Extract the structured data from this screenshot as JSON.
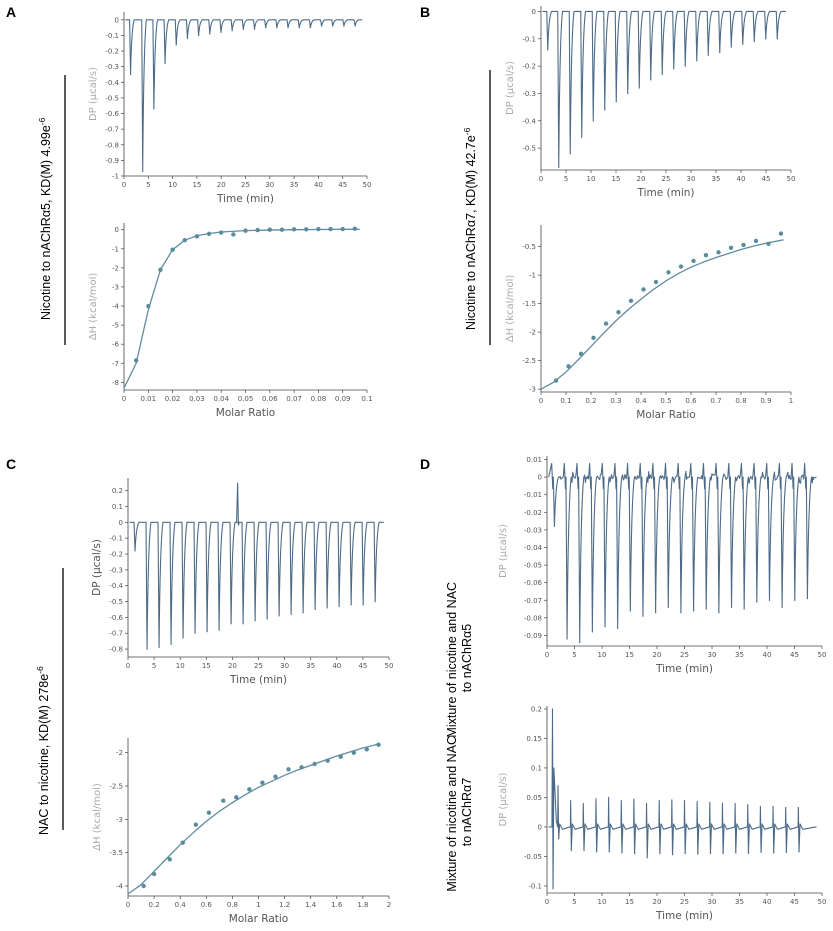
{
  "colors": {
    "trace": "#4d6b88",
    "fit": "#5f8da0",
    "point": "#5b8c9c",
    "axis": "#444444",
    "tick_text": "#555555",
    "dp_label": "#a9a9a9",
    "bracket": "#000000"
  },
  "panels": [
    {
      "letter": "A",
      "side_label": "Nicotine to nAChRα5, KD(M) 4.99e",
      "side_label_sup": "-6"
    },
    {
      "letter": "B",
      "side_label": "Nicotine to nAChRα7, KD(M) 42.7e",
      "side_label_sup": "-6"
    },
    {
      "letter": "C",
      "side_label": "NAC to nicotine, KD(M) 278e",
      "side_label_sup": "-6"
    },
    {
      "letter": "D",
      "side_label_top": [
        "Mixture of nicotine and NAC",
        "to nAChRα5"
      ],
      "side_label_bottom": [
        "Mixture of nicotine and NAC",
        "to nAChRα7"
      ]
    }
  ],
  "chart_data": [
    {
      "id": "A-thermogram",
      "type": "line",
      "xlabel": "Time (min)",
      "ylabel": "DP (µcal/s)",
      "xlim": [
        0,
        50
      ],
      "ylim": [
        -1,
        0.05
      ],
      "xticks": [
        0,
        5,
        10,
        15,
        20,
        25,
        30,
        35,
        40,
        45,
        50
      ],
      "yticks": [
        0,
        -0.1,
        -0.2,
        -0.3,
        -0.4,
        -0.5,
        -0.6,
        -0.7,
        -0.8,
        -0.9,
        -1
      ],
      "grid": false,
      "injection_times": [
        1.2,
        3.7,
        6.0,
        8.3,
        10.6,
        12.9,
        15.2,
        17.5,
        19.8,
        22.1,
        24.4,
        26.7,
        29.0,
        31.3,
        33.6,
        35.9,
        38.2,
        40.5,
        42.8,
        45.1,
        47.4
      ],
      "injection_peaks": [
        -0.35,
        -0.97,
        -0.57,
        -0.28,
        -0.16,
        -0.12,
        -0.1,
        -0.09,
        -0.08,
        -0.07,
        -0.06,
        -0.06,
        -0.05,
        -0.05,
        -0.05,
        -0.05,
        -0.05,
        -0.04,
        -0.04,
        -0.04,
        -0.04
      ]
    },
    {
      "id": "A-isotherm",
      "type": "scatter",
      "xlabel": "Molar Ratio",
      "ylabel": "ΔH (kcal/mol)",
      "xlim": [
        0,
        0.1
      ],
      "ylim": [
        -8.4,
        0.35
      ],
      "xticks": [
        0,
        0.01,
        0.02,
        0.03,
        0.04,
        0.05,
        0.06,
        0.07,
        0.08,
        0.09,
        0.1
      ],
      "yticks": [
        0,
        -1,
        -2,
        -3,
        -4,
        -5,
        -6,
        -7,
        -8
      ],
      "grid": false,
      "points": {
        "x": [
          0.005,
          0.01,
          0.015,
          0.02,
          0.025,
          0.03,
          0.035,
          0.04,
          0.045,
          0.05,
          0.055,
          0.06,
          0.065,
          0.07,
          0.075,
          0.08,
          0.085,
          0.09,
          0.095
        ],
        "y": [
          -6.85,
          -4.0,
          -2.1,
          -1.05,
          -0.55,
          -0.35,
          -0.22,
          -0.15,
          -0.25,
          -0.05,
          -0.02,
          0.0,
          0.0,
          0.02,
          0.02,
          0.03,
          0.03,
          0.03,
          0.05
        ]
      },
      "fit": {
        "x": [
          0,
          0.005,
          0.01,
          0.015,
          0.02,
          0.025,
          0.03,
          0.035,
          0.04,
          0.05,
          0.06,
          0.07,
          0.08,
          0.09,
          0.097
        ],
        "y": [
          -8.3,
          -7.0,
          -4.2,
          -2.1,
          -1.05,
          -0.55,
          -0.32,
          -0.2,
          -0.12,
          -0.05,
          -0.02,
          0.0,
          0.01,
          0.02,
          0.02
        ]
      }
    },
    {
      "id": "B-thermogram",
      "type": "line",
      "xlabel": "Time (min)",
      "ylabel": "DP (µcal/s)",
      "xlim": [
        0,
        50
      ],
      "ylim": [
        -0.58,
        0.02
      ],
      "xticks": [
        0,
        5,
        10,
        15,
        20,
        25,
        30,
        35,
        40,
        45,
        50
      ],
      "yticks": [
        0,
        -0.1,
        -0.2,
        -0.3,
        -0.4,
        -0.5
      ],
      "grid": false,
      "injection_times": [
        1.2,
        3.4,
        5.7,
        8.0,
        10.3,
        12.6,
        14.9,
        17.2,
        19.5,
        21.8,
        24.1,
        26.4,
        28.7,
        31.0,
        33.3,
        35.6,
        37.9,
        40.2,
        42.5,
        44.8,
        47.1
      ],
      "injection_peaks": [
        -0.14,
        -0.57,
        -0.52,
        -0.46,
        -0.4,
        -0.36,
        -0.33,
        -0.3,
        -0.28,
        -0.25,
        -0.23,
        -0.21,
        -0.2,
        -0.18,
        -0.16,
        -0.15,
        -0.13,
        -0.12,
        -0.11,
        -0.1,
        -0.1
      ]
    },
    {
      "id": "B-isotherm",
      "type": "scatter",
      "xlabel": "Molar Ratio",
      "ylabel": "ΔH (kcal/mol)",
      "xlim": [
        0,
        1
      ],
      "ylim": [
        -3.05,
        -0.12
      ],
      "xticks": [
        0,
        0.1,
        0.2,
        0.3,
        0.4,
        0.5,
        0.6,
        0.7,
        0.8,
        0.9,
        1
      ],
      "yticks": [
        -0.5,
        -1,
        -1.5,
        -2,
        -2.5,
        -3
      ],
      "grid": false,
      "points": {
        "x": [
          0.06,
          0.11,
          0.16,
          0.21,
          0.26,
          0.31,
          0.36,
          0.41,
          0.46,
          0.51,
          0.56,
          0.61,
          0.66,
          0.71,
          0.76,
          0.81,
          0.86,
          0.91,
          0.96
        ],
        "y": [
          -2.85,
          -2.6,
          -2.38,
          -2.1,
          -1.85,
          -1.65,
          -1.45,
          -1.25,
          -1.12,
          -0.95,
          -0.85,
          -0.75,
          -0.65,
          -0.6,
          -0.52,
          -0.47,
          -0.4,
          -0.45,
          -0.27
        ]
      },
      "fit": {
        "x": [
          0,
          0.05,
          0.1,
          0.15,
          0.2,
          0.25,
          0.3,
          0.35,
          0.4,
          0.45,
          0.5,
          0.55,
          0.6,
          0.65,
          0.7,
          0.75,
          0.8,
          0.85,
          0.9,
          0.97
        ],
        "y": [
          -3.0,
          -2.88,
          -2.7,
          -2.48,
          -2.25,
          -2.02,
          -1.8,
          -1.6,
          -1.42,
          -1.25,
          -1.1,
          -0.97,
          -0.86,
          -0.77,
          -0.69,
          -0.62,
          -0.55,
          -0.49,
          -0.44,
          -0.38
        ]
      }
    },
    {
      "id": "C-thermogram",
      "type": "line",
      "xlabel": "Time (min)",
      "ylabel": "DP (µcal/s)",
      "xlim": [
        0,
        50
      ],
      "ylim": [
        -0.85,
        0.28
      ],
      "xticks": [
        0,
        5,
        10,
        15,
        20,
        25,
        30,
        35,
        40,
        45,
        50
      ],
      "yticks": [
        0.2,
        0.1,
        0,
        -0.1,
        -0.2,
        -0.3,
        -0.4,
        -0.5,
        -0.6,
        -0.7,
        -0.8
      ],
      "grid": false,
      "spike": {
        "x": 21,
        "y": 0.25
      },
      "injection_times": [
        1.2,
        3.5,
        5.8,
        8.1,
        10.4,
        12.7,
        15.0,
        17.3,
        19.6,
        21.9,
        24.2,
        26.5,
        28.8,
        31.1,
        33.4,
        35.7,
        38.0,
        40.3,
        42.6,
        44.9,
        47.2
      ],
      "injection_peaks": [
        -0.18,
        -0.8,
        -0.79,
        -0.77,
        -0.73,
        -0.7,
        -0.69,
        -0.68,
        -0.64,
        -0.64,
        -0.62,
        -0.61,
        -0.59,
        -0.58,
        -0.57,
        -0.55,
        -0.54,
        -0.53,
        -0.52,
        -0.52,
        -0.5
      ]
    },
    {
      "id": "C-isotherm",
      "type": "scatter",
      "xlabel": "Molar Ratio",
      "ylabel": "ΔH (kcal/mol)",
      "xlim": [
        0,
        2
      ],
      "ylim": [
        -4.15,
        -1.78
      ],
      "xticks": [
        0,
        0.2,
        0.4,
        0.6,
        0.8,
        1,
        1.2,
        1.4,
        1.6,
        1.8,
        2
      ],
      "yticks": [
        -2,
        -2.5,
        -3,
        -3.5,
        -4
      ],
      "grid": false,
      "points": {
        "x": [
          0.12,
          0.2,
          0.32,
          0.42,
          0.52,
          0.62,
          0.73,
          0.83,
          0.93,
          1.03,
          1.13,
          1.23,
          1.33,
          1.43,
          1.53,
          1.63,
          1.73,
          1.83,
          1.92
        ],
        "y": [
          -4.0,
          -3.82,
          -3.6,
          -3.35,
          -3.08,
          -2.9,
          -2.72,
          -2.67,
          -2.55,
          -2.45,
          -2.36,
          -2.25,
          -2.22,
          -2.17,
          -2.12,
          -2.06,
          -2.0,
          -1.95,
          -1.88
        ]
      },
      "fit": {
        "x": [
          0,
          0.1,
          0.2,
          0.3,
          0.4,
          0.5,
          0.6,
          0.7,
          0.8,
          0.9,
          1,
          1.1,
          1.2,
          1.3,
          1.4,
          1.5,
          1.6,
          1.7,
          1.8,
          1.92
        ],
        "y": [
          -4.12,
          -3.98,
          -3.78,
          -3.58,
          -3.38,
          -3.2,
          -3.03,
          -2.88,
          -2.75,
          -2.63,
          -2.52,
          -2.43,
          -2.34,
          -2.26,
          -2.19,
          -2.12,
          -2.05,
          -1.99,
          -1.93,
          -1.87
        ]
      }
    },
    {
      "id": "D-thermogram-a5",
      "type": "line",
      "xlabel": "Time (min)",
      "ylabel": "DP (µcal/s)",
      "xlim": [
        0,
        50
      ],
      "ylim": [
        -0.096,
        0.012
      ],
      "xticks": [
        0,
        5,
        10,
        15,
        20,
        25,
        30,
        35,
        40,
        45,
        50
      ],
      "yticks": [
        0.01,
        0,
        -0.01,
        -0.02,
        -0.03,
        -0.04,
        -0.05,
        -0.06,
        -0.07,
        -0.08,
        -0.09
      ],
      "grid": false,
      "noise_amplitude": 0.006,
      "injection_times": [
        1.2,
        3.5,
        5.8,
        8.1,
        10.4,
        12.7,
        15.0,
        17.3,
        19.6,
        21.9,
        24.2,
        26.5,
        28.8,
        31.1,
        33.4,
        35.7,
        38.0,
        40.3,
        42.6,
        44.9,
        47.2
      ],
      "injection_peaks": [
        -0.028,
        -0.092,
        -0.094,
        -0.088,
        -0.085,
        -0.086,
        -0.076,
        -0.079,
        -0.077,
        -0.074,
        -0.077,
        -0.076,
        -0.075,
        -0.077,
        -0.074,
        -0.075,
        -0.071,
        -0.07,
        -0.074,
        -0.07,
        -0.069
      ]
    },
    {
      "id": "D-thermogram-a7",
      "type": "line",
      "xlabel": "Time (min)",
      "ylabel": "DP (µcal/s)",
      "xlim": [
        0,
        50
      ],
      "ylim": [
        -0.112,
        0.205
      ],
      "xticks": [
        0,
        5,
        10,
        15,
        20,
        25,
        30,
        35,
        40,
        45,
        50
      ],
      "yticks": [
        0.2,
        0.15,
        0.1,
        0.05,
        0,
        -0.05,
        -0.1
      ],
      "grid": false,
      "initial_spike": {
        "x": 1,
        "y_max": 0.2,
        "y_min": -0.105
      },
      "injection_times": [
        2.0,
        4.3,
        6.6,
        8.9,
        11.2,
        13.5,
        15.8,
        18.1,
        20.4,
        22.7,
        25.0,
        27.3,
        29.6,
        31.9,
        34.2,
        36.5,
        38.8,
        41.1,
        43.4,
        45.7
      ],
      "injection_up": [
        0.07,
        0.045,
        0.04,
        0.048,
        0.05,
        0.045,
        0.047,
        0.04,
        0.045,
        0.046,
        0.045,
        0.043,
        0.042,
        0.04,
        0.04,
        0.038,
        0.035,
        0.035,
        0.033,
        0.033
      ],
      "injection_down": [
        -0.02,
        -0.04,
        -0.04,
        -0.042,
        -0.042,
        -0.044,
        -0.045,
        -0.052,
        -0.045,
        -0.047,
        -0.045,
        -0.046,
        -0.045,
        -0.045,
        -0.044,
        -0.045,
        -0.043,
        -0.044,
        -0.043,
        -0.042
      ]
    }
  ]
}
